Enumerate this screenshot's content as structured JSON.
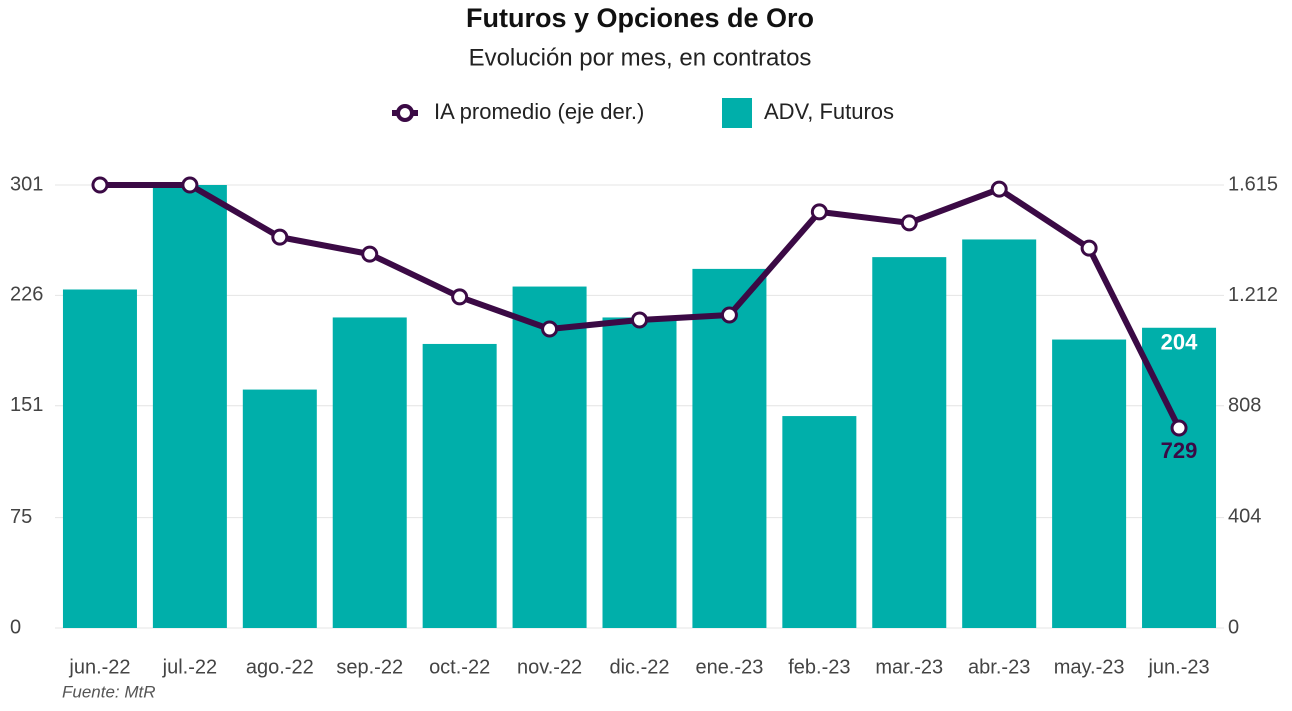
{
  "chart_data": {
    "type": "bar_line",
    "title": "Futuros y Opciones de Oro",
    "subtitle": "Evolución por mes, en contratos",
    "source": "Fuente: MtR",
    "categories": [
      "jun.-22",
      "jul.-22",
      "ago.-22",
      "sep.-22",
      "oct.-22",
      "nov.-22",
      "dic.-22",
      "ene.-23",
      "feb.-23",
      "mar.-23",
      "abr.-23",
      "may.-23",
      "jun.-23"
    ],
    "series": [
      {
        "name": "IA promedio (eje der.)",
        "type": "line",
        "axis": "y2",
        "color": "#3b0a45",
        "values": [
          1615,
          1615,
          1425,
          1363,
          1207,
          1090,
          1123,
          1141,
          1517,
          1477,
          1600,
          1385,
          729
        ],
        "value_labels": [
          null,
          null,
          null,
          null,
          null,
          null,
          null,
          null,
          null,
          null,
          null,
          null,
          "729"
        ]
      },
      {
        "name": "ADV, Futuros",
        "type": "bar",
        "color": "#00afaa",
        "values": [
          230,
          301,
          162,
          211,
          193,
          232,
          211,
          244,
          144,
          252,
          264,
          196,
          204
        ],
        "value_labels": [
          null,
          null,
          null,
          null,
          null,
          null,
          null,
          null,
          null,
          null,
          null,
          null,
          "204"
        ]
      }
    ],
    "ylim": [
      0,
      301
    ],
    "yticks": [
      0,
      75,
      151,
      226,
      301
    ],
    "y2lim": [
      0,
      1615
    ],
    "y2ticks": [
      0,
      404,
      808,
      {
        "value": 1212,
        "label": "1.212"
      },
      {
        "value": 1615,
        "label": "1.615"
      }
    ],
    "grid": true
  }
}
